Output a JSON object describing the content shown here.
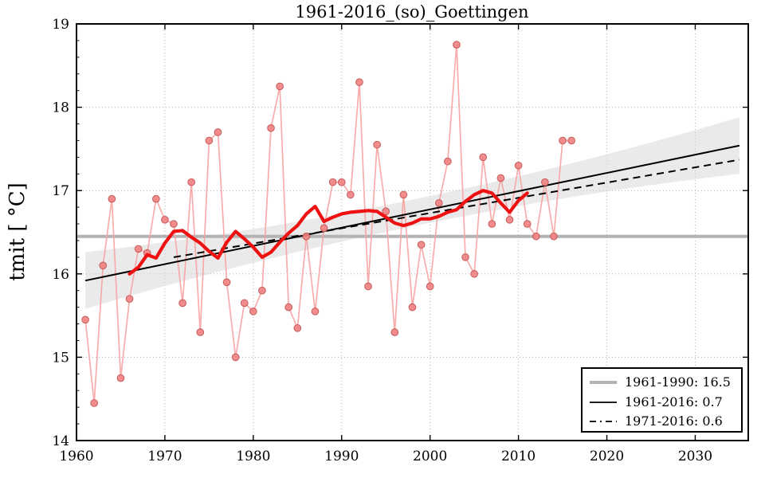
{
  "figure": {
    "title": "1961-2016_(so)_Goettingen",
    "ylabel": "tmit [ °C]"
  },
  "legend": {
    "entries": [
      {
        "label": "1961-1990: 16.5",
        "style": "thick-gray"
      },
      {
        "label": "1961-2016: 0.7",
        "style": "solid-black"
      },
      {
        "label": "1971-2016: 0.6",
        "style": "dashed-black"
      }
    ]
  },
  "colors": {
    "annual_marker_fill": "#f28282",
    "annual_marker_edge": "#c75f5f",
    "annual_line": "#f7a3a3",
    "smoothed_line": "#ee1111",
    "reference_line": "#b3b3b3",
    "trend_line": "#000000",
    "confidence_band": "#d9d9d9",
    "gridline": "#b0b0b0",
    "frame": "#000000"
  },
  "chart_data": {
    "type": "line",
    "title": "1961-2016_(so)_Goettingen",
    "xlabel": "",
    "ylabel": "tmit [ °C]",
    "xlim": [
      1960,
      2036
    ],
    "ylim": [
      14,
      19
    ],
    "x_ticks": [
      1960,
      1970,
      1980,
      1990,
      2000,
      2010,
      2020,
      2030
    ],
    "y_ticks": [
      14,
      15,
      16,
      17,
      18,
      19
    ],
    "y_minor_step": 0.2,
    "grid": true,
    "legend_position": "lower right",
    "series": [
      {
        "name": "annual_values",
        "type": "scatter_line",
        "x": [
          1961,
          1962,
          1963,
          1964,
          1965,
          1966,
          1967,
          1968,
          1969,
          1970,
          1971,
          1972,
          1973,
          1974,
          1975,
          1976,
          1977,
          1978,
          1979,
          1980,
          1981,
          1982,
          1983,
          1984,
          1985,
          1986,
          1987,
          1988,
          1989,
          1990,
          1991,
          1992,
          1993,
          1994,
          1995,
          1996,
          1997,
          1998,
          1999,
          2000,
          2001,
          2002,
          2003,
          2004,
          2005,
          2006,
          2007,
          2008,
          2009,
          2010,
          2011,
          2012,
          2013,
          2014,
          2015,
          2016
        ],
        "values": [
          15.45,
          14.45,
          16.1,
          16.9,
          14.75,
          15.7,
          16.3,
          16.25,
          16.9,
          16.65,
          16.6,
          15.65,
          17.1,
          15.3,
          17.6,
          17.7,
          15.9,
          15.0,
          15.65,
          15.55,
          15.8,
          17.75,
          18.25,
          15.6,
          15.35,
          16.45,
          15.55,
          16.55,
          17.1,
          17.1,
          16.95,
          18.3,
          15.85,
          17.55,
          16.75,
          15.3,
          16.95,
          15.6,
          16.35,
          15.85,
          16.85,
          17.35,
          18.75,
          16.2,
          16.0,
          17.4,
          16.6,
          17.15,
          16.65,
          17.3,
          16.6,
          16.45,
          17.1,
          16.45,
          17.6,
          17.6
        ]
      },
      {
        "name": "smoothed_running_mean",
        "type": "line",
        "x": [
          1966,
          1967,
          1968,
          1969,
          1970,
          1971,
          1972,
          1973,
          1974,
          1975,
          1976,
          1977,
          1978,
          1979,
          1980,
          1981,
          1982,
          1983,
          1984,
          1985,
          1986,
          1987,
          1988,
          1989,
          1990,
          1991,
          1992,
          1993,
          1994,
          1995,
          1996,
          1997,
          1998,
          1999,
          2000,
          2001,
          2002,
          2003,
          2004,
          2005,
          2006,
          2007,
          2008,
          2009,
          2010,
          2011
        ],
        "values": [
          16.0,
          16.08,
          16.23,
          16.19,
          16.37,
          16.51,
          16.52,
          16.44,
          16.37,
          16.27,
          16.19,
          16.38,
          16.51,
          16.42,
          16.32,
          16.2,
          16.26,
          16.38,
          16.49,
          16.58,
          16.72,
          16.81,
          16.63,
          16.68,
          16.72,
          16.74,
          16.75,
          16.76,
          16.75,
          16.68,
          16.61,
          16.58,
          16.61,
          16.66,
          16.66,
          16.69,
          16.74,
          16.77,
          16.87,
          16.95,
          17.0,
          16.97,
          16.85,
          16.74,
          16.88,
          16.97
        ]
      },
      {
        "name": "mean_1961_1990",
        "type": "hline",
        "value": 16.45,
        "x_span": [
          1960,
          2036
        ],
        "label": "1961-1990: 16.5"
      },
      {
        "name": "trend_1961_2016",
        "type": "trend_solid",
        "x": [
          1961,
          2035
        ],
        "values": [
          15.92,
          17.54
        ],
        "label": "1961-2016: 0.7"
      },
      {
        "name": "trend_1971_2016",
        "type": "trend_dashed",
        "x": [
          1971,
          2035
        ],
        "values": [
          16.2,
          17.37
        ],
        "label": "1971-2016: 0.6"
      },
      {
        "name": "confidence_band",
        "type": "band",
        "x_span": [
          1961,
          2035
        ],
        "center": "trend_1961_2016",
        "half_width_min": 0.16,
        "half_width_extra": 0.18,
        "pinch_year": 1998,
        "span_years": 37
      }
    ]
  }
}
